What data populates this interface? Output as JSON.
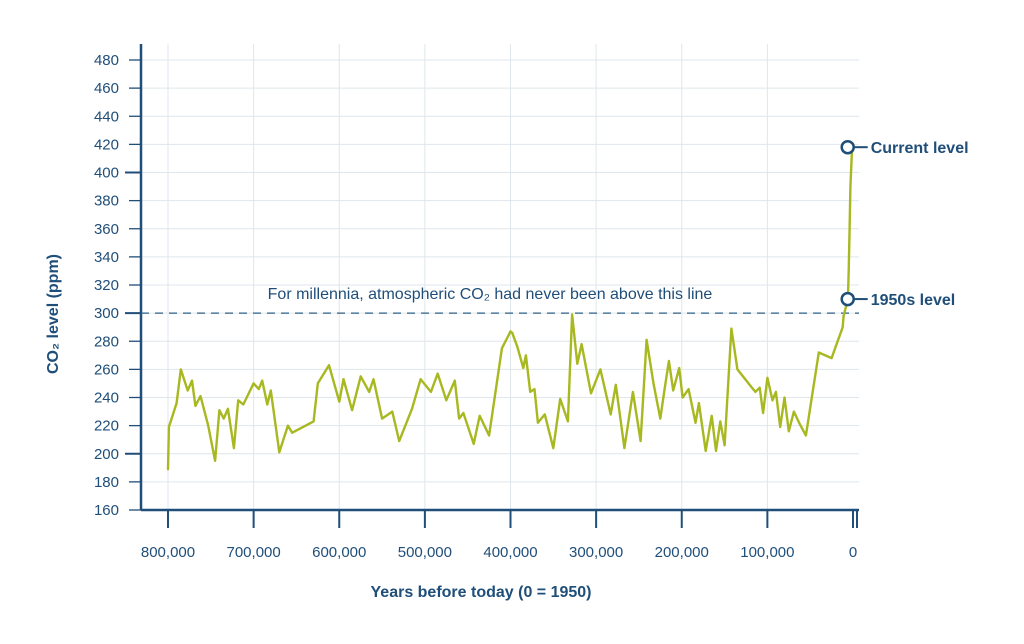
{
  "chart_data": {
    "type": "line",
    "title": "",
    "xlabel": "Years before today (0 = 1950)",
    "ylabel": "CO₂ level (ppm)",
    "xlim": [
      800000,
      0
    ],
    "ylim": [
      160,
      480
    ],
    "x_ticks": [
      800000,
      700000,
      600000,
      500000,
      400000,
      300000,
      200000,
      100000,
      0
    ],
    "x_tick_labels": [
      "800,000",
      "700,000",
      "600,000",
      "500,000",
      "400,000",
      "300,000",
      "200,000",
      "100,000",
      "0"
    ],
    "y_ticks": [
      160,
      180,
      200,
      220,
      240,
      260,
      280,
      300,
      320,
      340,
      360,
      380,
      400,
      420,
      440,
      460,
      480
    ],
    "grid": true,
    "line_color": "#a8b820",
    "axis_color": "#1f4e79",
    "reference_line": {
      "y": 300,
      "label": "For millennia, atmospheric CO₂ had never been above this line"
    },
    "annotations": [
      {
        "label": "Current level",
        "x": 5000,
        "y": 418
      },
      {
        "label": "1950s level",
        "x": 5000,
        "y": 310
      }
    ],
    "series": [
      {
        "x": [
          800000,
          799000,
          790000,
          785000,
          777000,
          772000,
          768000,
          762000,
          753000,
          745000,
          740000,
          735000,
          730000,
          723000,
          718000,
          712000,
          700000,
          694000,
          690000,
          684000,
          680000,
          670000,
          660000,
          655000,
          630000,
          625000,
          612000,
          600000,
          595000,
          585000,
          575000,
          565000,
          560000,
          550000,
          538000,
          530000,
          515000,
          505000,
          493000,
          485000,
          475000,
          465000,
          460000,
          455000,
          443000,
          436000,
          425000,
          410000,
          400000,
          398000,
          392000,
          385000,
          382000,
          377000,
          372000,
          368000,
          360000,
          350000,
          342000,
          333000,
          328000,
          322000,
          317000,
          306000,
          295000,
          283000,
          277000,
          267000,
          257000,
          248000,
          241000,
          233000,
          225000,
          220000,
          215000,
          210000,
          203000,
          199000,
          192000,
          184000,
          180000,
          172000,
          165000,
          160000,
          155000,
          150000,
          142000,
          135000,
          118000,
          114000,
          109000,
          105000,
          100000,
          94000,
          90000,
          85000,
          80000,
          75000,
          69000,
          63000,
          55000,
          40000,
          25000,
          18000,
          15000,
          12000,
          11000,
          6000,
          5000,
          4000,
          3000,
          1000
        ],
        "y": [
          189,
          219,
          236,
          260,
          245,
          252,
          234,
          241,
          220,
          195,
          231,
          225,
          232,
          204,
          238,
          235,
          250,
          246,
          252,
          235,
          245,
          201,
          220,
          215,
          223,
          250,
          263,
          237,
          253,
          231,
          255,
          244,
          253,
          225,
          230,
          209,
          232,
          253,
          244,
          257,
          238,
          252,
          225,
          229,
          207,
          227,
          213,
          275,
          287,
          286,
          276,
          261,
          270,
          244,
          246,
          222,
          228,
          204,
          239,
          223,
          299,
          264,
          278,
          243,
          260,
          228,
          249,
          204,
          244,
          209,
          281,
          250,
          225,
          246,
          266,
          245,
          261,
          240,
          246,
          222,
          236,
          202,
          227,
          202,
          223,
          206,
          289,
          260,
          247,
          244,
          247,
          229,
          254,
          238,
          244,
          219,
          240,
          216,
          230,
          222,
          213,
          272,
          268,
          280,
          285,
          290,
          298,
          310,
          330,
          360,
          390,
          418
        ]
      }
    ]
  }
}
